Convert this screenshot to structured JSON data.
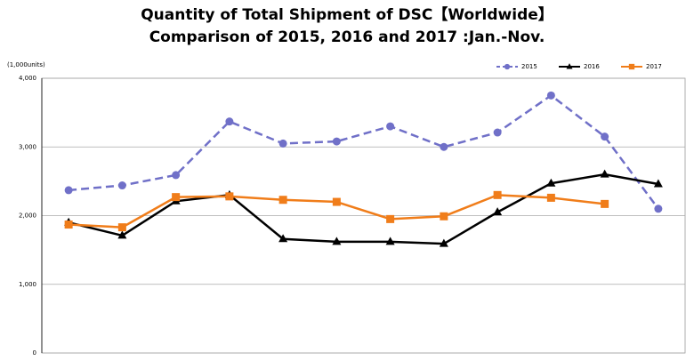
{
  "chart_data": {
    "type": "line",
    "title": [
      "Quantity of Total Shipment of DSC【Worldwide】",
      "Comparison of 2015, 2016 and 2017 :Jan.-Nov."
    ],
    "y_label": "(1,000units)",
    "categories": [
      null,
      null,
      null,
      null,
      null,
      null,
      null,
      null,
      null,
      null,
      null,
      null
    ],
    "series": [
      {
        "name": "2015",
        "color": "#7070c8",
        "dash": true,
        "marker": "circle",
        "values": [
          2370,
          2440,
          2590,
          3370,
          3050,
          3080,
          3300,
          3000,
          3210,
          3750,
          3150,
          2100
        ]
      },
      {
        "name": "2016",
        "color": "#000000",
        "dash": false,
        "marker": "triangle",
        "values": [
          1900,
          1710,
          2210,
          2300,
          1660,
          1620,
          1620,
          1590,
          2050,
          2470,
          2600,
          2460
        ]
      },
      {
        "name": "2017",
        "color": "#f07d1a",
        "dash": false,
        "marker": "square",
        "values": [
          1870,
          1830,
          2270,
          2280,
          2230,
          2200,
          1950,
          1990,
          2300,
          2260,
          2170,
          null
        ]
      }
    ],
    "ylim": [
      0,
      4000
    ],
    "yticks": [
      0,
      {
        "value": 1000,
        "label": "1,000"
      },
      {
        "value": 2000,
        "label": "2,000"
      },
      {
        "value": 3000,
        "label": "3,000"
      },
      {
        "value": 4000,
        "label": "4,000"
      }
    ],
    "grid": true,
    "legend": "top-right"
  }
}
